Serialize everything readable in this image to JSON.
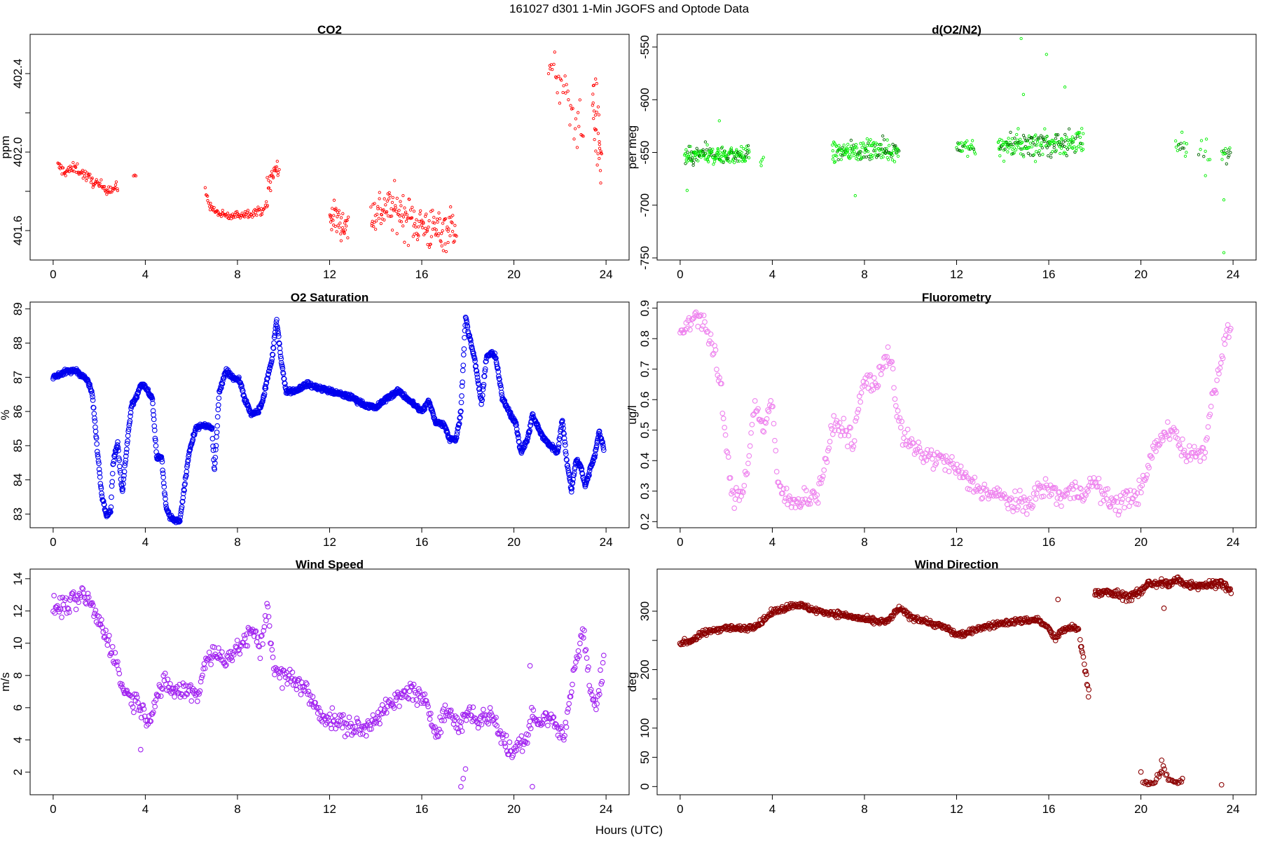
{
  "figure": {
    "title": "161027   d301   1-Min  JGOFS and Optode Data",
    "xlabel": "Hours (UTC)"
  },
  "chart_data": [
    {
      "type": "scatter",
      "title": "CO2",
      "ylabel": "ppm",
      "color": "#ff0000",
      "marker_size": "small",
      "xlim": [
        -1,
        25
      ],
      "ylim": [
        401.45,
        402.6
      ],
      "xticks": [
        0,
        4,
        8,
        12,
        16,
        20,
        24
      ],
      "yticks_labeled": [
        401.6,
        402.0,
        402.4
      ],
      "yticks_minor": [
        401.8,
        402.2
      ],
      "ytick_labels": [
        "401.6",
        "402.0",
        "402.4"
      ],
      "segments": [
        {
          "x": [
            0.2,
            0.5,
            1.0,
            1.5,
            2.0,
            2.5,
            2.8
          ],
          "y": [
            401.93,
            401.9,
            401.92,
            401.87,
            401.83,
            401.81,
            401.82
          ],
          "scatter": 0.02,
          "n": 90
        },
        {
          "x": [
            3.5,
            3.6
          ],
          "y": [
            401.88,
            401.88
          ],
          "scatter": 0.005,
          "n": 3
        },
        {
          "x": [
            6.6,
            6.8,
            7.0,
            7.3,
            7.7,
            8.0,
            8.5,
            9.0,
            9.3
          ],
          "y": [
            401.8,
            401.73,
            401.7,
            401.68,
            401.67,
            401.68,
            401.69,
            401.7,
            401.73
          ],
          "scatter": 0.015,
          "n": 90
        },
        {
          "x": [
            9.3,
            9.6,
            9.8
          ],
          "y": [
            401.82,
            401.9,
            401.92
          ],
          "scatter": 0.05,
          "n": 22
        },
        {
          "x": [
            12.0,
            12.4,
            12.8
          ],
          "y": [
            401.68,
            401.65,
            401.62
          ],
          "scatter": 0.06,
          "n": 40
        },
        {
          "x": [
            13.8,
            14.5,
            15.0,
            15.5,
            16.0,
            16.5,
            17.0,
            17.5
          ],
          "y": [
            401.68,
            401.72,
            401.7,
            401.66,
            401.63,
            401.6,
            401.61,
            401.63
          ],
          "scatter": 0.08,
          "n": 160
        },
        {
          "x": [
            21.5,
            21.9,
            22.5,
            23.0
          ],
          "y": [
            402.4,
            402.38,
            402.2,
            402.1
          ],
          "scatter": 0.09,
          "n": 35
        },
        {
          "x": [
            23.4,
            23.8
          ],
          "y": [
            402.3,
            401.95
          ],
          "scatter": 0.15,
          "n": 30
        }
      ]
    },
    {
      "type": "scatter",
      "title": "d(O2/N2)",
      "ylabel": "per meg",
      "color": "#00ee00",
      "dark_color": "#006400",
      "marker_size": "small",
      "xlim": [
        -1,
        25
      ],
      "ylim": [
        -752,
        -538
      ],
      "xticks": [
        0,
        4,
        8,
        12,
        16,
        20,
        24
      ],
      "yticks_labeled": [
        -750,
        -700,
        -650,
        -600,
        -550
      ],
      "ytick_labels": [
        "-750",
        "-700",
        "-650",
        "-600",
        "-550"
      ],
      "segments": [
        {
          "x": [
            0.2,
            1.0,
            2.0,
            3.0
          ],
          "y": [
            -655,
            -652,
            -653,
            -652
          ],
          "scatter": 6,
          "n": 180
        },
        {
          "x": [
            3.5,
            3.6
          ],
          "y": [
            -657,
            -657
          ],
          "scatter": 4,
          "n": 4
        },
        {
          "x": [
            6.6,
            7.5,
            8.5,
            9.5
          ],
          "y": [
            -650,
            -648,
            -648,
            -648
          ],
          "scatter": 7,
          "n": 160
        },
        {
          "x": [
            12.0,
            12.8
          ],
          "y": [
            -645,
            -645
          ],
          "scatter": 5,
          "n": 30
        },
        {
          "x": [
            13.8,
            15.0,
            16.0,
            17.5
          ],
          "y": [
            -645,
            -643,
            -642,
            -640
          ],
          "scatter": 9,
          "n": 200
        },
        {
          "x": [
            21.5,
            22.0
          ],
          "y": [
            -645,
            -645
          ],
          "scatter": 7,
          "n": 14
        },
        {
          "x": [
            22.5,
            23.0
          ],
          "y": [
            -648,
            -648
          ],
          "scatter": 8,
          "n": 8
        },
        {
          "x": [
            23.5,
            23.9
          ],
          "y": [
            -650,
            -650
          ],
          "scatter": 6,
          "n": 14
        }
      ],
      "outliers": [
        {
          "x": 0.3,
          "y": -686
        },
        {
          "x": 1.7,
          "y": -620
        },
        {
          "x": 7.6,
          "y": -691
        },
        {
          "x": 14.8,
          "y": -542
        },
        {
          "x": 14.9,
          "y": -595
        },
        {
          "x": 15.9,
          "y": -557
        },
        {
          "x": 16.7,
          "y": -588
        },
        {
          "x": 22.8,
          "y": -672
        },
        {
          "x": 23.6,
          "y": -695
        },
        {
          "x": 23.6,
          "y": -745
        }
      ]
    },
    {
      "type": "scatter",
      "title": "O2 Saturation",
      "ylabel": "%",
      "color": "#0000ee",
      "marker_size": "large",
      "xlim": [
        -1,
        25
      ],
      "ylim": [
        82.6,
        89.2
      ],
      "xticks": [
        0,
        4,
        8,
        12,
        16,
        20,
        24
      ],
      "yticks_labeled": [
        83,
        84,
        85,
        86,
        87,
        88,
        89
      ],
      "ytick_labels": [
        "83",
        "84",
        "85",
        "86",
        "87",
        "88",
        "89"
      ],
      "trace": {
        "x": [
          0.0,
          0.5,
          1.0,
          1.5,
          1.7,
          1.9,
          2.1,
          2.3,
          2.5,
          2.6,
          2.8,
          2.9,
          3.0,
          3.2,
          3.4,
          3.6,
          3.8,
          4.0,
          4.2,
          4.3,
          4.5,
          4.7,
          4.9,
          5.1,
          5.3,
          5.5,
          5.7,
          5.9,
          6.2,
          6.5,
          6.9,
          7.0,
          7.2,
          7.5,
          7.8,
          8.1,
          8.3,
          8.6,
          8.9,
          9.1,
          9.3,
          9.5,
          9.7,
          9.9,
          10.1,
          10.5,
          11.0,
          11.5,
          12.0,
          12.5,
          13.0,
          13.5,
          14.0,
          14.5,
          15.0,
          15.5,
          16.0,
          16.3,
          16.6,
          17.0,
          17.2,
          17.5,
          17.7,
          17.9,
          18.0,
          18.3,
          18.6,
          18.8,
          19.0,
          19.2,
          19.5,
          19.8,
          20.1,
          20.3,
          20.6,
          20.8,
          21.0,
          21.3,
          21.6,
          21.9,
          22.1,
          22.3,
          22.5,
          22.7,
          22.9,
          23.1,
          23.3,
          23.5,
          23.7,
          23.9
        ],
        "y": [
          87.0,
          87.15,
          87.2,
          86.9,
          86.5,
          85.0,
          83.6,
          83.0,
          83.1,
          84.5,
          85.1,
          84.3,
          83.6,
          85.0,
          86.2,
          86.4,
          86.8,
          86.7,
          86.5,
          86.4,
          84.6,
          84.7,
          83.2,
          82.9,
          82.8,
          82.8,
          83.8,
          84.8,
          85.5,
          85.6,
          85.5,
          84.2,
          86.5,
          87.2,
          87.0,
          86.9,
          86.4,
          85.9,
          86.0,
          86.3,
          87.0,
          87.5,
          88.7,
          87.5,
          86.6,
          86.6,
          86.8,
          86.7,
          86.6,
          86.5,
          86.4,
          86.2,
          86.1,
          86.4,
          86.6,
          86.3,
          86.0,
          86.3,
          85.7,
          85.6,
          85.2,
          85.2,
          86.0,
          88.8,
          88.4,
          87.5,
          86.2,
          87.6,
          87.7,
          87.6,
          86.4,
          86.0,
          85.6,
          84.8,
          85.2,
          85.9,
          85.6,
          85.2,
          85.0,
          84.8,
          85.8,
          84.5,
          83.7,
          84.6,
          84.4,
          83.8,
          84.3,
          84.7,
          85.4,
          84.9
        ]
      }
    },
    {
      "type": "scatter",
      "title": "Fluorometry",
      "ylabel": "ug/l",
      "color": "#ee82ee",
      "marker_size": "large",
      "xlim": [
        -1,
        25
      ],
      "ylim": [
        0.18,
        0.92
      ],
      "xticks": [
        0,
        4,
        8,
        12,
        16,
        20,
        24
      ],
      "yticks_labeled": [
        0.2,
        0.3,
        0.4,
        0.5,
        0.6,
        0.7,
        0.8,
        0.9
      ],
      "ytick_labels": [
        "0.2",
        "0.3",
        "0.4",
        "0.5",
        "0.6",
        "0.7",
        "0.8",
        "0.9"
      ],
      "trace": {
        "x": [
          0.0,
          0.3,
          0.6,
          0.9,
          1.2,
          1.5,
          1.8,
          2.0,
          2.2,
          2.4,
          2.6,
          2.8,
          3.0,
          3.2,
          3.4,
          3.6,
          3.8,
          4.0,
          4.2,
          4.5,
          4.8,
          5.0,
          5.5,
          6.0,
          6.3,
          6.7,
          7.0,
          7.3,
          7.5,
          7.8,
          8.0,
          8.3,
          8.6,
          8.8,
          9.0,
          9.2,
          9.4,
          9.7,
          10.0,
          10.5,
          11.0,
          11.5,
          12.0,
          12.5,
          13.0,
          13.5,
          14.0,
          14.5,
          15.0,
          15.5,
          16.0,
          16.5,
          17.0,
          17.5,
          18.0,
          18.5,
          19.0,
          19.5,
          20.0,
          20.2,
          20.5,
          20.8,
          21.0,
          21.3,
          21.6,
          21.9,
          22.2,
          22.5,
          22.8,
          23.0,
          23.3,
          23.6,
          23.9
        ],
        "y": [
          0.82,
          0.84,
          0.88,
          0.87,
          0.82,
          0.74,
          0.62,
          0.45,
          0.3,
          0.28,
          0.29,
          0.33,
          0.43,
          0.58,
          0.55,
          0.51,
          0.55,
          0.6,
          0.33,
          0.29,
          0.26,
          0.27,
          0.28,
          0.29,
          0.4,
          0.52,
          0.51,
          0.49,
          0.45,
          0.6,
          0.66,
          0.66,
          0.65,
          0.72,
          0.76,
          0.72,
          0.55,
          0.48,
          0.45,
          0.42,
          0.41,
          0.4,
          0.37,
          0.33,
          0.31,
          0.29,
          0.28,
          0.26,
          0.25,
          0.3,
          0.31,
          0.28,
          0.3,
          0.3,
          0.33,
          0.27,
          0.26,
          0.28,
          0.3,
          0.34,
          0.43,
          0.46,
          0.48,
          0.51,
          0.47,
          0.43,
          0.42,
          0.42,
          0.45,
          0.56,
          0.68,
          0.77,
          0.85
        ]
      },
      "scatter": 0.025,
      "n": 560
    },
    {
      "type": "scatter",
      "title": "Wind Speed",
      "ylabel": "m/s",
      "color": "#a020f0",
      "marker_size": "large",
      "xlim": [
        -1,
        25
      ],
      "ylim": [
        0.6,
        14.6
      ],
      "xticks": [
        0,
        4,
        8,
        12,
        16,
        20,
        24
      ],
      "yticks_labeled": [
        2,
        4,
        6,
        8,
        10,
        12,
        14
      ],
      "ytick_labels": [
        "2",
        "4",
        "6",
        "8",
        "10",
        "12",
        "14"
      ],
      "trace": {
        "x": [
          0.0,
          0.5,
          1.0,
          1.3,
          1.6,
          2.0,
          2.4,
          2.7,
          3.0,
          3.3,
          3.6,
          3.8,
          4.0,
          4.2,
          4.5,
          4.8,
          5.0,
          5.5,
          6.0,
          6.3,
          6.6,
          7.0,
          7.5,
          8.0,
          8.5,
          8.8,
          9.0,
          9.3,
          9.6,
          10.0,
          10.5,
          11.0,
          11.5,
          12.0,
          12.5,
          13.0,
          13.5,
          14.0,
          14.5,
          15.0,
          15.5,
          16.0,
          16.3,
          16.6,
          17.0,
          17.3,
          17.6,
          18.0,
          18.5,
          19.0,
          19.5,
          19.7,
          20.0,
          20.3,
          20.6,
          20.8,
          21.0,
          21.3,
          21.6,
          21.9,
          22.2,
          22.5,
          22.8,
          23.0,
          23.2,
          23.4,
          23.6,
          23.9
        ],
        "y": [
          12.2,
          12.3,
          12.6,
          13.0,
          12.5,
          11.3,
          10.2,
          9.0,
          7.3,
          6.7,
          6.4,
          6.2,
          5.3,
          5.5,
          6.8,
          7.4,
          7.2,
          7.0,
          7.1,
          6.8,
          9.0,
          9.3,
          9.1,
          9.6,
          10.5,
          10.6,
          9.5,
          12.5,
          8.2,
          7.9,
          7.8,
          7.0,
          5.8,
          5.3,
          5.0,
          4.8,
          4.6,
          5.5,
          6.0,
          6.5,
          7.2,
          6.5,
          5.8,
          4.5,
          5.8,
          5.5,
          4.8,
          5.8,
          5.2,
          5.6,
          4.2,
          3.5,
          3.2,
          4.0,
          4.2,
          6.0,
          5.0,
          5.2,
          5.5,
          4.6,
          4.3,
          7.5,
          9.5,
          10.8,
          8.5,
          6.5,
          6.0,
          9.2
        ]
      },
      "scatter": 0.45,
      "n": 650,
      "outliers": [
        {
          "x": 17.7,
          "y": 1.1
        },
        {
          "x": 17.8,
          "y": 1.6
        },
        {
          "x": 17.9,
          "y": 2.2
        },
        {
          "x": 20.8,
          "y": 1.1
        },
        {
          "x": 20.7,
          "y": 8.6
        },
        {
          "x": 3.8,
          "y": 3.4
        }
      ]
    },
    {
      "type": "scatter",
      "title": "Wind Direction",
      "ylabel": "deg",
      "color": "#8b0000",
      "marker_size": "large",
      "xlim": [
        -1,
        25
      ],
      "ylim": [
        -14,
        372
      ],
      "xticks": [
        0,
        4,
        8,
        12,
        16,
        20,
        24
      ],
      "yticks_labeled": [
        0,
        50,
        100,
        200,
        300
      ],
      "yticks_minor": [
        150,
        250
      ],
      "ytick_labels": [
        "0",
        "50",
        "100",
        "200",
        "300"
      ],
      "segments": [
        {
          "x": [
            0.0,
            0.5,
            1.0,
            1.5,
            2.0,
            2.5,
            3.0,
            3.5,
            4.0,
            4.5,
            5.0,
            5.5,
            6.0,
            6.5,
            7.0,
            7.5,
            8.0,
            8.5,
            9.0,
            9.5,
            10.0,
            10.5,
            11.0,
            11.5,
            12.0,
            12.5,
            13.0,
            13.5,
            14.0,
            14.5,
            15.0,
            15.5,
            16.0,
            16.3,
            16.6,
            17.0,
            17.3
          ],
          "y": [
            245,
            250,
            262,
            268,
            272,
            270,
            272,
            280,
            298,
            305,
            312,
            306,
            300,
            297,
            294,
            290,
            286,
            282,
            282,
            305,
            290,
            285,
            278,
            272,
            260,
            262,
            272,
            275,
            280,
            282,
            284,
            286,
            270,
            252,
            268,
            272,
            268
          ],
          "scatter": 3.5,
          "n": 620
        },
        {
          "x": [
            17.35,
            17.45,
            17.55,
            17.65,
            17.75
          ],
          "y": [
            250,
            235,
            210,
            180,
            155
          ],
          "scatter": 6,
          "n": 14
        },
        {
          "x": [
            18.0,
            18.5,
            19.0,
            19.5,
            20.0,
            20.3,
            20.6,
            21.0,
            21.2,
            21.6,
            22.0,
            22.5,
            23.0,
            23.5,
            23.9
          ],
          "y": [
            332,
            332,
            328,
            325,
            332,
            350,
            345,
            350,
            345,
            354,
            345,
            345,
            345,
            350,
            332
          ],
          "scatter": 5,
          "n": 230
        },
        {
          "x": [
            20.1,
            20.3,
            20.6,
            21.0,
            21.3,
            21.6,
            21.8
          ],
          "y": [
            8,
            5,
            8,
            30,
            10,
            8,
            8
          ],
          "scatter": 4,
          "n": 34
        }
      ],
      "outliers": [
        {
          "x": 20.0,
          "y": 25
        },
        {
          "x": 20.9,
          "y": 45
        },
        {
          "x": 23.5,
          "y": 3
        },
        {
          "x": 21.0,
          "y": 305
        },
        {
          "x": 16.4,
          "y": 320
        }
      ]
    }
  ]
}
